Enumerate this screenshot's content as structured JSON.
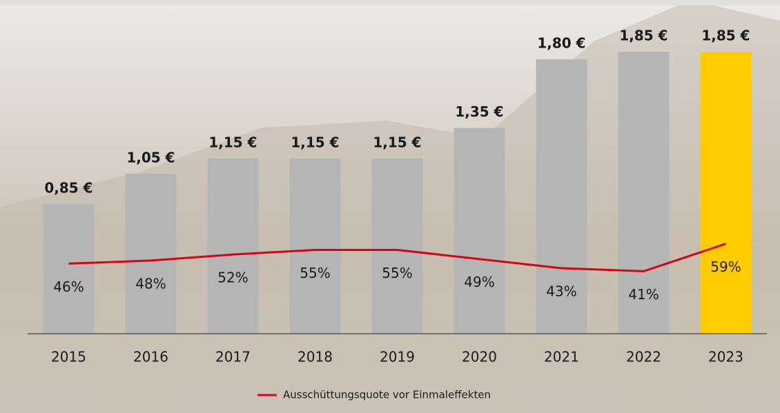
{
  "chart_data": {
    "type": "bar",
    "categories": [
      "2015",
      "2016",
      "2017",
      "2018",
      "2019",
      "2020",
      "2021",
      "2022",
      "2023"
    ],
    "values": [
      0.85,
      1.05,
      1.15,
      1.15,
      1.15,
      1.35,
      1.8,
      1.85,
      1.85
    ],
    "value_labels": [
      "0,85 €",
      "1,05 €",
      "1,15 €",
      "1,15 €",
      "1,15 €",
      "1,35 €",
      "1,80 €",
      "1,85 €",
      "1,85 €"
    ],
    "colors": [
      "#b5b5b5",
      "#b5b5b5",
      "#b5b5b5",
      "#b5b5b5",
      "#b5b5b5",
      "#b5b5b5",
      "#b5b5b5",
      "#b5b5b5",
      "#ffcc00"
    ],
    "ylim": [
      0,
      2
    ],
    "series": [
      {
        "name": "Ausschüttungsquote vor Einmaleffekten",
        "type": "line",
        "color": "#d40511",
        "axis": "y2",
        "values": [
          46,
          48,
          52,
          55,
          55,
          49,
          43,
          41,
          59
        ],
        "value_labels": [
          "46%",
          "48%",
          "52%",
          "55%",
          "55%",
          "49%",
          "43%",
          "41%",
          "59%"
        ]
      }
    ],
    "y2lim": [
      0,
      200
    ],
    "legend": "bottom"
  }
}
